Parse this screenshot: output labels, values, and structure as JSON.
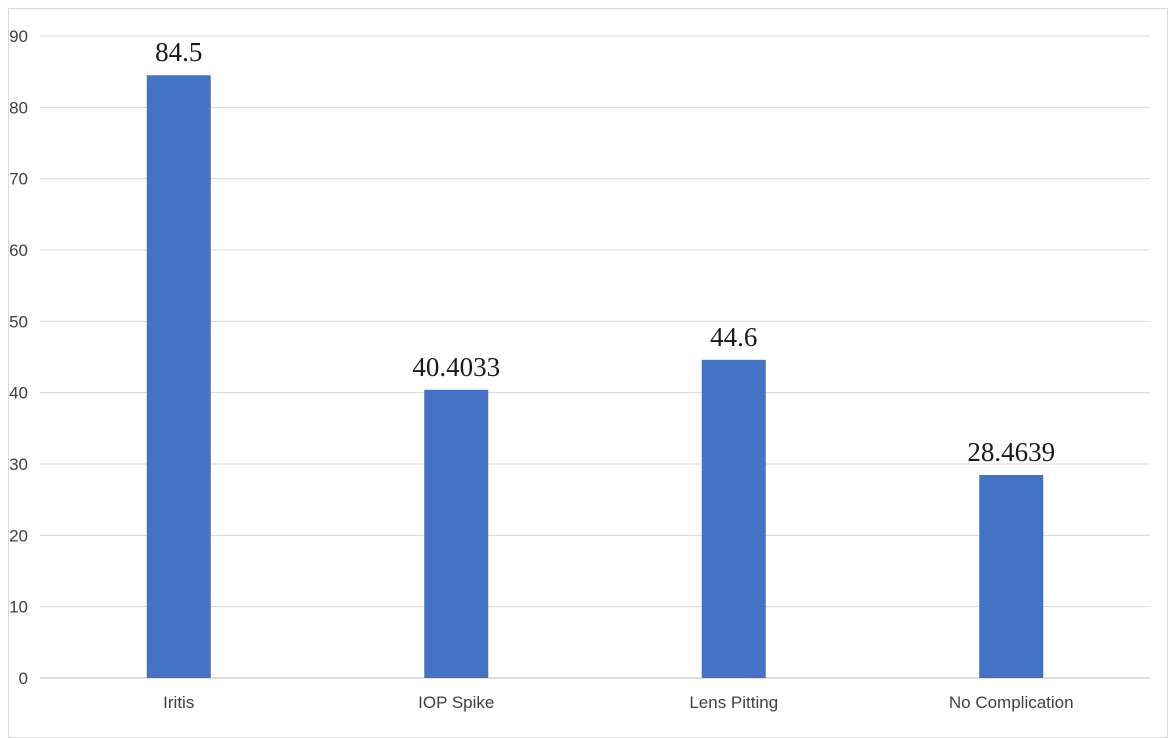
{
  "chart_data": {
    "type": "bar",
    "title": "",
    "xlabel": "",
    "ylabel": "",
    "categories": [
      "Iritis",
      "IOP Spike",
      "Lens Pitting",
      "No Complication"
    ],
    "values": [
      84.5,
      40.4033,
      44.6,
      28.4639
    ],
    "data_labels": [
      "84.5",
      "40.4033",
      "44.6",
      "28.4639"
    ],
    "ylim": [
      0,
      90
    ],
    "yticks": [
      0,
      10,
      20,
      30,
      40,
      50,
      60,
      70,
      80,
      90
    ],
    "grid": true,
    "legend": "none",
    "bar_color": "#4472C4",
    "gridline_color": "#d9d9d9",
    "axis_text_color": "#404040"
  }
}
